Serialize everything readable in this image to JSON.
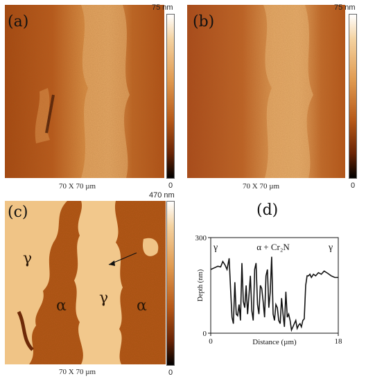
{
  "panels": {
    "a": {
      "label": "(a)",
      "scale_label": "70 X 70 µm",
      "colorbar_max": "75 nm",
      "colorbar_min": "0"
    },
    "b": {
      "label": "(b)",
      "scale_label": "70 X 70 µm",
      "colorbar_max": "75 nm",
      "colorbar_min": "0"
    },
    "c": {
      "label": "(c)",
      "scale_label": "70 X 70 µm",
      "colorbar_max": "470 nm",
      "colorbar_min": "0",
      "phase_labels": [
        "γ",
        "γ",
        "α",
        "α"
      ]
    },
    "d": {
      "label": "(d)"
    }
  },
  "colors": {
    "afm_dark": "#5a1e06",
    "afm_mid": "#b85a1c",
    "afm_light": "#e8a25a",
    "afm_highlight": "#f6d5a4",
    "line": "#111111"
  },
  "chart_data": {
    "type": "line",
    "title": "",
    "xlabel": "Distance (µm)",
    "ylabel": "Depth (nm)",
    "xlim": [
      0,
      18
    ],
    "ylim": [
      0,
      300
    ],
    "xticks": [
      "0",
      "18"
    ],
    "yticks": [
      "0",
      "300"
    ],
    "annotations": [
      "γ",
      "α + Cr₂N",
      "γ"
    ],
    "series": [
      {
        "x": [
          0,
          0.5,
          1.0,
          1.4,
          1.7,
          2.0,
          2.3,
          2.6,
          2.8,
          3.0,
          3.2,
          3.4,
          3.6,
          3.8,
          4.0,
          4.2,
          4.4,
          4.6,
          4.8,
          5.0,
          5.2,
          5.4,
          5.6,
          5.8,
          6.0,
          6.2,
          6.4,
          6.6,
          6.8,
          7.0,
          7.2,
          7.4,
          7.6,
          7.8,
          8.0,
          8.2,
          8.4,
          8.6,
          8.8,
          9.0,
          9.2,
          9.4,
          9.6,
          9.8,
          10.0,
          10.2,
          10.4,
          10.6,
          10.8,
          11.0,
          11.2,
          11.4,
          11.6,
          11.8,
          12.0,
          12.2,
          12.4,
          12.6,
          12.8,
          13.0,
          13.2,
          13.4,
          13.6,
          13.8,
          14.0,
          14.2,
          14.5,
          14.8,
          15.2,
          15.6,
          16.0,
          16.5,
          17.0,
          17.5,
          18.0
        ],
        "y": [
          200,
          205,
          210,
          208,
          225,
          215,
          200,
          235,
          140,
          50,
          30,
          160,
          60,
          55,
          90,
          40,
          220,
          100,
          80,
          150,
          60,
          120,
          180,
          70,
          40,
          200,
          220,
          90,
          60,
          150,
          140,
          100,
          50,
          180,
          200,
          80,
          130,
          240,
          60,
          40,
          90,
          80,
          40,
          30,
          110,
          60,
          20,
          130,
          50,
          60,
          40,
          10,
          20,
          30,
          40,
          15,
          25,
          30,
          20,
          40,
          45,
          150,
          180,
          180,
          185,
          175,
          185,
          180,
          190,
          185,
          195,
          188,
          180,
          175,
          175
        ]
      }
    ]
  }
}
